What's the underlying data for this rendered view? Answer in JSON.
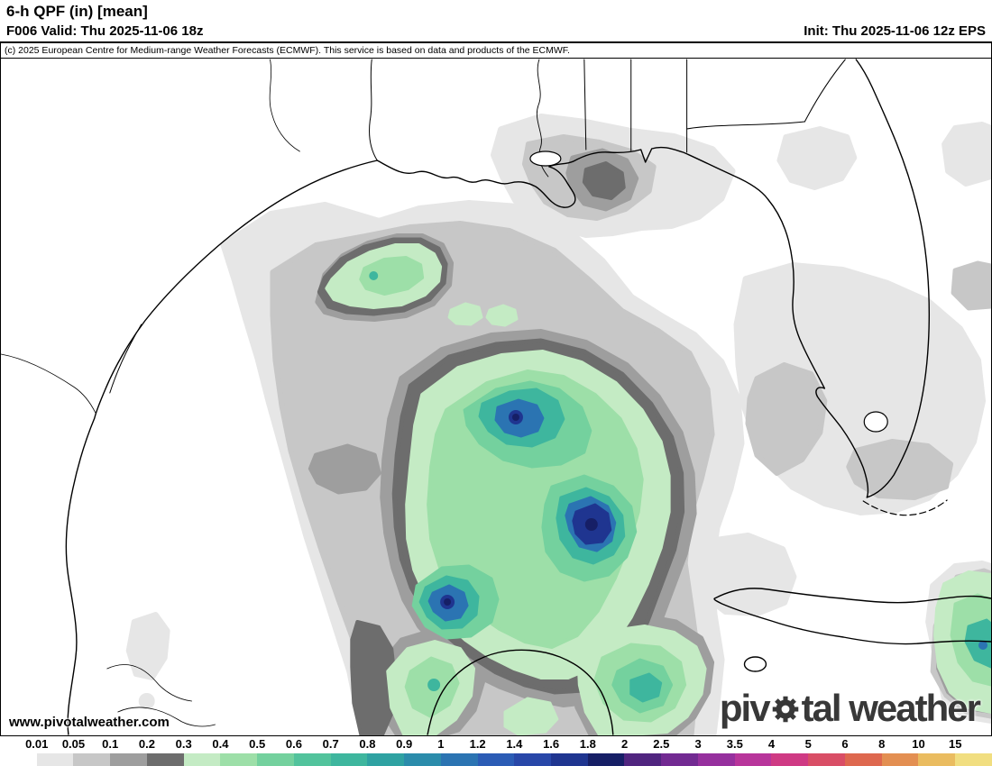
{
  "header": {
    "title": "6-h QPF (in) [mean]",
    "valid": "F006 Valid: Thu 2025-11-06 18z",
    "init": "Init: Thu 2025-11-06 12z EPS"
  },
  "copyright": "(c) 2025 European Centre for Medium-range Weather Forecasts (ECMWF). This service is based on data and products of the ECMWF.",
  "watermark": {
    "url": "www.pivotalweather.com",
    "logo_prefix": "piv",
    "logo_suffix": "tal weather"
  },
  "colorbar": {
    "units": "in",
    "labels": [
      "0.01",
      "0.05",
      "0.1",
      "0.2",
      "0.3",
      "0.4",
      "0.5",
      "0.6",
      "0.7",
      "0.8",
      "0.9",
      "1",
      "1.2",
      "1.4",
      "1.6",
      "1.8",
      "2",
      "2.5",
      "3",
      "3.5",
      "4",
      "5",
      "6",
      "8",
      "10",
      "15"
    ],
    "colors": [
      "#ffffff",
      "#e6e6e6",
      "#c7c7c7",
      "#9e9e9e",
      "#6d6d6d",
      "#c4ebc4",
      "#9ddfa8",
      "#74d19e",
      "#52c39c",
      "#3eb69e",
      "#2fa2a2",
      "#2b8cab",
      "#2b74b2",
      "#2b5cb5",
      "#2847a8",
      "#1f3590",
      "#161f66",
      "#50257f",
      "#722a92",
      "#96309e",
      "#b8359b",
      "#cf3a84",
      "#d94e66",
      "#de684f",
      "#e38f52",
      "#eabc60",
      "#f1de80"
    ]
  }
}
